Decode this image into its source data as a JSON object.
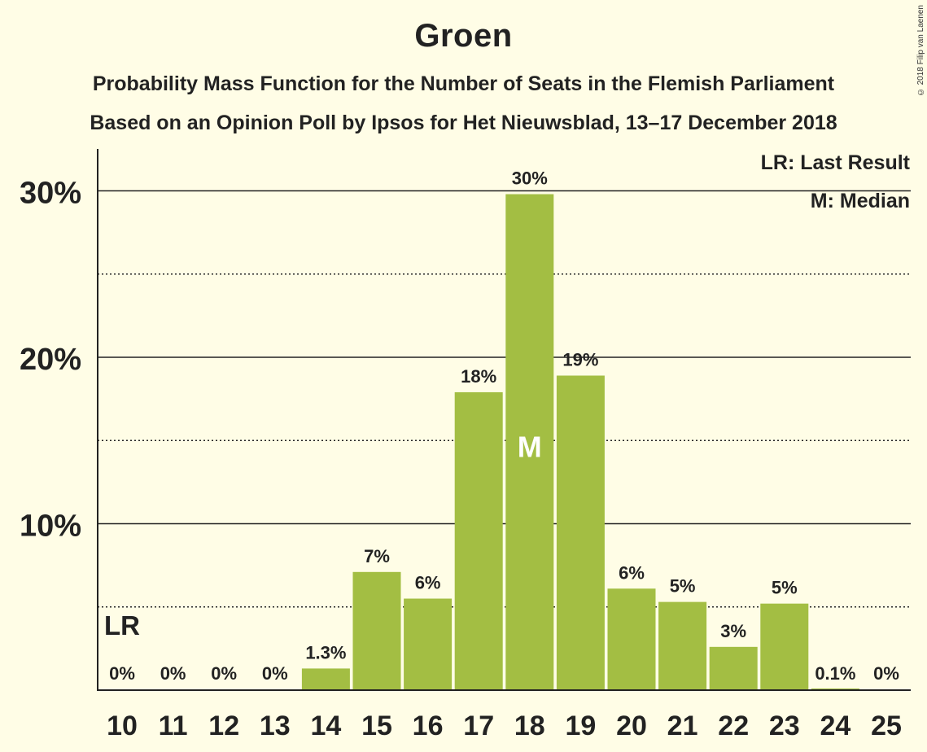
{
  "header": {
    "title": "Groen",
    "subtitle1": "Probability Mass Function for the Number of Seats in the Flemish Parliament",
    "subtitle2": "Based on an Opinion Poll by Ipsos for Het Nieuwsblad, 13–17 December 2018",
    "copyright": "© 2018 Filip van Laenen"
  },
  "legend": {
    "last_result": "LR: Last Result",
    "median": "M: Median"
  },
  "colors": {
    "background": "#fffde6",
    "bar": "#a3be43",
    "text": "#222222"
  },
  "chart_data": {
    "type": "bar",
    "title": "Groen",
    "xlabel": "",
    "ylabel": "",
    "categories": [
      "10",
      "11",
      "12",
      "13",
      "14",
      "15",
      "16",
      "17",
      "18",
      "19",
      "20",
      "21",
      "22",
      "23",
      "24",
      "25"
    ],
    "values": [
      0,
      0,
      0,
      0,
      1.3,
      7.1,
      5.5,
      17.9,
      29.8,
      18.9,
      6.1,
      5.3,
      2.6,
      5.2,
      0.1,
      0
    ],
    "value_labels": [
      "0%",
      "0%",
      "0%",
      "0%",
      "1.3%",
      "7%",
      "6%",
      "18%",
      "30%",
      "19%",
      "6%",
      "5%",
      "3%",
      "5%",
      "0.1%",
      "0%"
    ],
    "ylim": [
      0,
      32.5
    ],
    "y_ticks": [
      10,
      20,
      30
    ],
    "y_tick_labels": [
      "10%",
      "20%",
      "30%"
    ],
    "y_dotted_lines": [
      5,
      15,
      25
    ],
    "last_result": {
      "category": "10",
      "label": "LR"
    },
    "median": {
      "category": "18",
      "label": "M"
    }
  }
}
